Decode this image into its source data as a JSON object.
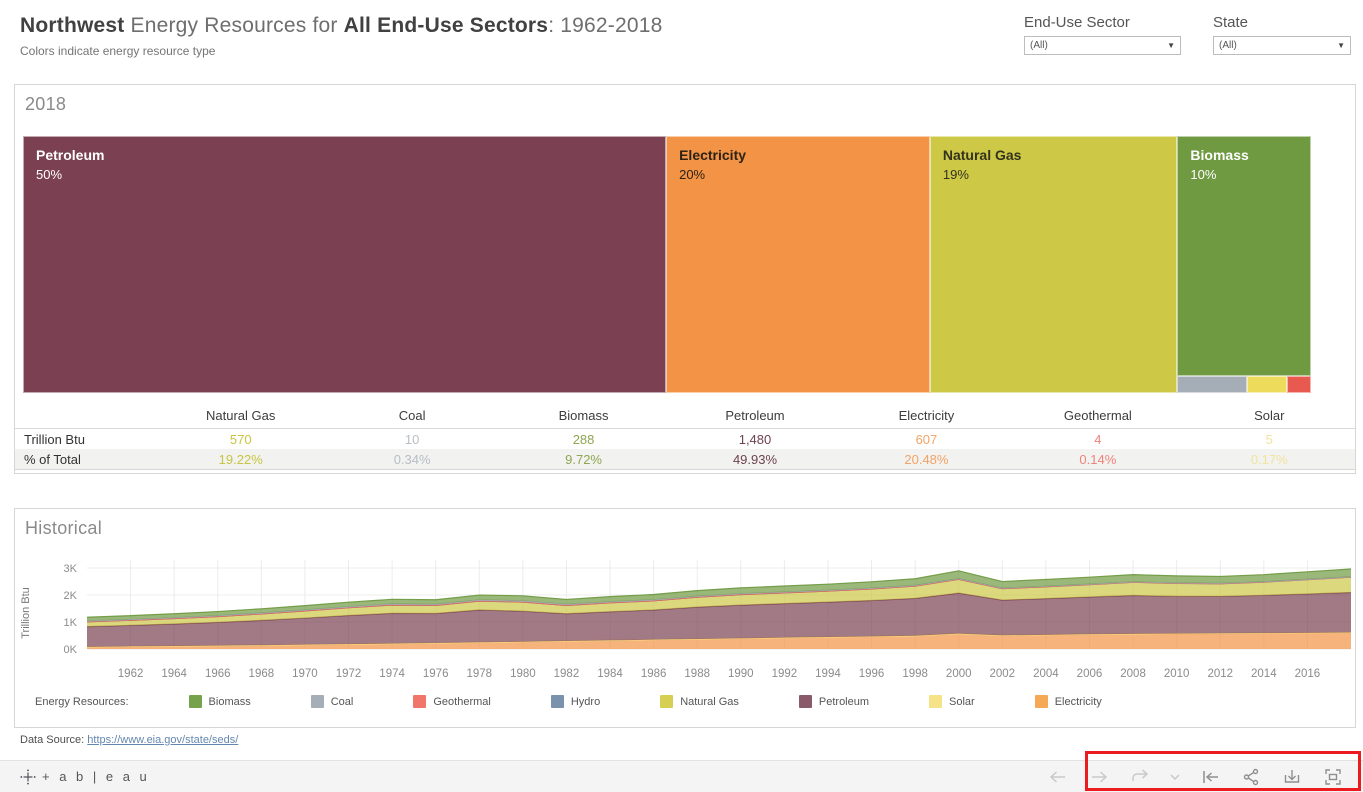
{
  "header": {
    "title_html_parts": {
      "bold1": "Northwest",
      "mid": " Energy Resources for ",
      "bold2": "All End-Use Sectors",
      "tail": ": 1962-2018"
    },
    "subtitle": "Colors indicate energy resource type"
  },
  "filters": [
    {
      "label": "End-Use Sector",
      "value": "(All)"
    },
    {
      "label": "State",
      "value": "(All)"
    }
  ],
  "treemap_panel": {
    "title": "2018",
    "blocks": [
      {
        "name": "Petroleum",
        "pct": "50%",
        "color": "#7B4152",
        "text_color": "#ffffff",
        "width_pct": 49.93
      },
      {
        "name": "Electricity",
        "pct": "20%",
        "color": "#F29345",
        "text_color": "#2e2214",
        "width_pct": 20.48
      },
      {
        "name": "Natural Gas",
        "pct": "19%",
        "color": "#CDC846",
        "text_color": "#33331d",
        "width_pct": 19.22
      },
      {
        "name": "Biomass",
        "pct": "10%",
        "color": "#6F9A41",
        "text_color": "#ffffff",
        "width_pct": 10.37,
        "sub_blocks": [
          {
            "name": "Coal",
            "color": "#A5AEB6",
            "width_pct": 52
          },
          {
            "name": "Solar",
            "color": "#EDDB5C",
            "width_pct": 30
          },
          {
            "name": "Geothermal",
            "color": "#E8594F",
            "width_pct": 18
          }
        ]
      }
    ]
  },
  "table": {
    "row_labels": [
      "Trillion Btu",
      "% of Total"
    ],
    "columns": [
      {
        "name": "Natural Gas",
        "btu": "570",
        "pct": "19.22%",
        "value_color": "#c9c441"
      },
      {
        "name": "Coal",
        "btu": "10",
        "pct": "0.34%",
        "value_color": "#b7bec5"
      },
      {
        "name": "Biomass",
        "btu": "288",
        "pct": "9.72%",
        "value_color": "#8fa653"
      },
      {
        "name": "Petroleum",
        "btu": "1,480",
        "pct": "49.93%",
        "value_color": "#6e4250"
      },
      {
        "name": "Electricity",
        "btu": "607",
        "pct": "20.48%",
        "value_color": "#f2a366"
      },
      {
        "name": "Geothermal",
        "btu": "4",
        "pct": "0.14%",
        "value_color": "#ef837b"
      },
      {
        "name": "Solar",
        "btu": "5",
        "pct": "0.17%",
        "value_color": "#f2e39e"
      }
    ]
  },
  "historical_panel": {
    "title": "Historical",
    "legend_label": "Energy Resources:",
    "legend": [
      {
        "name": "Biomass",
        "color": "#76A24B"
      },
      {
        "name": "Coal",
        "color": "#A5AEB6"
      },
      {
        "name": "Geothermal",
        "color": "#F0766C"
      },
      {
        "name": "Hydro",
        "color": "#7A92AC"
      },
      {
        "name": "Natural Gas",
        "color": "#D6CF51"
      },
      {
        "name": "Petroleum",
        "color": "#8A5A6B"
      },
      {
        "name": "Solar",
        "color": "#F7E387"
      },
      {
        "name": "Electricity",
        "color": "#F5A954"
      }
    ]
  },
  "chart_data": {
    "type": "area",
    "stacked": true,
    "title": "Historical",
    "ylabel": "Trillion Btu",
    "xlabel": "",
    "ylim": [
      0,
      3333
    ],
    "xlim": [
      1960,
      2018
    ],
    "ytick_step": 1000,
    "yticks": [
      "0K",
      "1K",
      "2K",
      "3K"
    ],
    "xticks": [
      1962,
      1964,
      1966,
      1968,
      1970,
      1972,
      1974,
      1976,
      1978,
      1980,
      1982,
      1984,
      1986,
      1988,
      1990,
      1992,
      1994,
      1996,
      1998,
      2000,
      2002,
      2004,
      2006,
      2008,
      2010,
      2012,
      2014,
      2016
    ],
    "grid": true,
    "legend_position": "bottom",
    "x": [
      1960,
      1962,
      1964,
      1966,
      1968,
      1970,
      1972,
      1974,
      1976,
      1978,
      1980,
      1982,
      1984,
      1986,
      1988,
      1990,
      1992,
      1994,
      1996,
      1998,
      2000,
      2002,
      2004,
      2006,
      2008,
      2010,
      2012,
      2014,
      2016,
      2018
    ],
    "series": [
      {
        "name": "Electricity",
        "color": "#F29345",
        "values": [
          80,
          95,
          110,
          125,
          140,
          160,
          180,
          200,
          220,
          245,
          270,
          295,
          320,
          345,
          370,
          395,
          420,
          445,
          465,
          490,
          570,
          505,
          525,
          545,
          560,
          570,
          575,
          585,
          595,
          607
        ]
      },
      {
        "name": "Solar",
        "color": "#F7E387",
        "values": [
          0,
          0,
          0,
          0,
          0,
          0,
          0,
          0,
          0,
          0,
          0,
          0,
          0,
          0,
          0,
          0,
          0,
          0,
          0,
          0,
          0,
          0,
          0,
          0,
          1,
          1,
          2,
          3,
          4,
          5
        ]
      },
      {
        "name": "Petroleum",
        "color": "#7B4152",
        "values": [
          750,
          780,
          815,
          860,
          920,
          985,
          1060,
          1120,
          1095,
          1200,
          1130,
          1010,
          1060,
          1100,
          1180,
          1230,
          1260,
          1290,
          1330,
          1385,
          1500,
          1305,
          1340,
          1380,
          1420,
          1380,
          1370,
          1400,
          1440,
          1480
        ]
      },
      {
        "name": "Natural Gas",
        "color": "#CDC846",
        "values": [
          180,
          190,
          205,
          220,
          240,
          265,
          290,
          310,
          300,
          330,
          340,
          310,
          330,
          340,
          370,
          390,
          400,
          410,
          430,
          455,
          510,
          425,
          440,
          460,
          490,
          480,
          470,
          490,
          530,
          570
        ]
      },
      {
        "name": "Hydro",
        "color": "#7A92AC",
        "values": [
          0,
          0,
          0,
          0,
          0,
          0,
          0,
          0,
          0,
          0,
          0,
          0,
          0,
          0,
          0,
          0,
          0,
          0,
          0,
          0,
          0,
          0,
          0,
          0,
          0,
          0,
          0,
          0,
          0,
          0
        ]
      },
      {
        "name": "Geothermal",
        "color": "#E8594F",
        "values": [
          0,
          0,
          0,
          0,
          0,
          0,
          0,
          0,
          0,
          1,
          1,
          1,
          2,
          2,
          2,
          2,
          3,
          3,
          3,
          3,
          3,
          3,
          3,
          3,
          4,
          4,
          4,
          4,
          4,
          4
        ]
      },
      {
        "name": "Coal",
        "color": "#A5AEB6",
        "values": [
          30,
          30,
          30,
          32,
          34,
          36,
          38,
          40,
          40,
          42,
          44,
          40,
          38,
          36,
          34,
          32,
          30,
          28,
          26,
          24,
          22,
          20,
          18,
          16,
          14,
          12,
          12,
          11,
          10,
          10
        ]
      },
      {
        "name": "Biomass",
        "color": "#6F9A41",
        "values": [
          135,
          140,
          145,
          150,
          155,
          160,
          165,
          170,
          170,
          180,
          185,
          180,
          190,
          195,
          205,
          215,
          220,
          225,
          235,
          245,
          290,
          240,
          250,
          255,
          265,
          260,
          255,
          260,
          275,
          288
        ]
      }
    ]
  },
  "data_source": {
    "label": "Data Source:",
    "link_text": "https://www.eia.gov/state/seds/"
  },
  "footer": {
    "logo_text": "+ a b | e a u",
    "toolbar_icons": [
      "undo-icon",
      "redo-icon",
      "replay-icon",
      "caret-down-icon",
      "revert-icon",
      "share-icon",
      "download-icon",
      "fullscreen-icon"
    ]
  },
  "colors": {
    "annotation_red": "#ec1b1f",
    "panel_border": "#d6d6d6",
    "grid": "#ececec",
    "axis_text": "#8b8b8b"
  }
}
